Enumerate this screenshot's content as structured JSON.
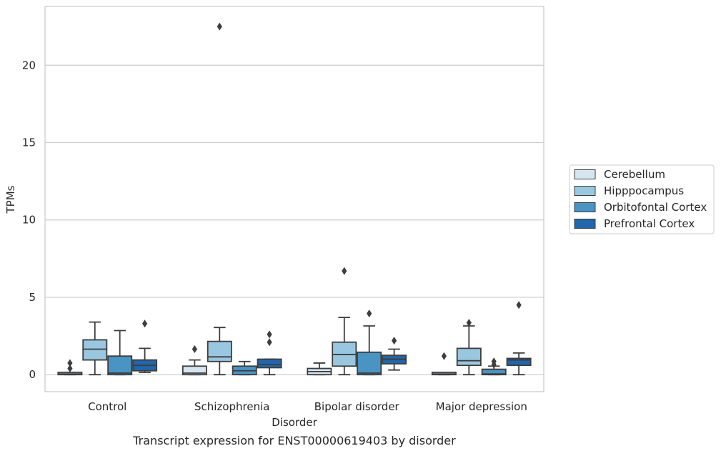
{
  "chart_data": {
    "type": "box",
    "title": "",
    "caption": "Transcript expression for ENST00000619403 by disorder",
    "xlabel": "Disorder",
    "ylabel": "TPMs",
    "ylim": [
      -1.1,
      23.8
    ],
    "yticks": [
      0,
      5,
      10,
      15,
      20
    ],
    "grid": "horizontal",
    "legend_placement": "right",
    "categories": [
      "Control",
      "Schizophrenia",
      "Bipolar disorder",
      "Major depression"
    ],
    "series": [
      {
        "name": "Cerebellum",
        "color": "#d7e5f1",
        "boxes": [
          {
            "min": 0.0,
            "q1": 0.0,
            "median": 0.05,
            "q3": 0.15,
            "max": 0.15,
            "outliers": [
              0.4,
              0.75
            ]
          },
          {
            "min": 0.0,
            "q1": 0.0,
            "median": 0.1,
            "q3": 0.55,
            "max": 0.95,
            "outliers": [
              1.65
            ]
          },
          {
            "min": 0.0,
            "q1": 0.0,
            "median": 0.2,
            "q3": 0.4,
            "max": 0.75,
            "outliers": []
          },
          {
            "min": 0.0,
            "q1": 0.0,
            "median": 0.05,
            "q3": 0.15,
            "max": 0.15,
            "outliers": [
              1.2
            ]
          }
        ]
      },
      {
        "name": "Hipppocampus",
        "color": "#9ac7e0",
        "boxes": [
          {
            "min": 0.0,
            "q1": 0.95,
            "median": 1.65,
            "q3": 2.25,
            "max": 3.4,
            "outliers": []
          },
          {
            "min": 0.0,
            "q1": 0.85,
            "median": 1.15,
            "q3": 2.15,
            "max": 3.05,
            "outliers": [
              22.5
            ]
          },
          {
            "min": 0.0,
            "q1": 0.55,
            "median": 1.3,
            "q3": 2.1,
            "max": 3.7,
            "outliers": [
              6.7
            ]
          },
          {
            "min": 0.0,
            "q1": 0.6,
            "median": 0.9,
            "q3": 1.7,
            "max": 3.15,
            "outliers": [
              3.35
            ]
          }
        ]
      },
      {
        "name": "Orbitofontal Cortex",
        "color": "#4a94c4",
        "boxes": [
          {
            "min": 0.0,
            "q1": 0.0,
            "median": 0.1,
            "q3": 1.2,
            "max": 2.85,
            "outliers": []
          },
          {
            "min": 0.0,
            "q1": 0.0,
            "median": 0.25,
            "q3": 0.55,
            "max": 0.85,
            "outliers": []
          },
          {
            "min": 0.0,
            "q1": 0.0,
            "median": 0.1,
            "q3": 1.45,
            "max": 3.15,
            "outliers": [
              3.95
            ]
          },
          {
            "min": 0.0,
            "q1": 0.0,
            "median": 0.05,
            "q3": 0.35,
            "max": 0.55,
            "outliers": [
              0.65,
              0.85
            ]
          }
        ]
      },
      {
        "name": "Prefrontal Cortex",
        "color": "#2166ab",
        "boxes": [
          {
            "min": 0.15,
            "q1": 0.25,
            "median": 0.6,
            "q3": 0.95,
            "max": 1.7,
            "outliers": [
              3.3
            ]
          },
          {
            "min": 0.0,
            "q1": 0.45,
            "median": 0.65,
            "q3": 1.0,
            "max": 1.0,
            "outliers": [
              2.1,
              2.6
            ]
          },
          {
            "min": 0.3,
            "q1": 0.7,
            "median": 1.0,
            "q3": 1.25,
            "max": 1.65,
            "outliers": [
              2.2
            ]
          },
          {
            "min": 0.0,
            "q1": 0.6,
            "median": 0.95,
            "q3": 1.05,
            "max": 1.4,
            "outliers": [
              4.5
            ]
          }
        ]
      }
    ]
  }
}
